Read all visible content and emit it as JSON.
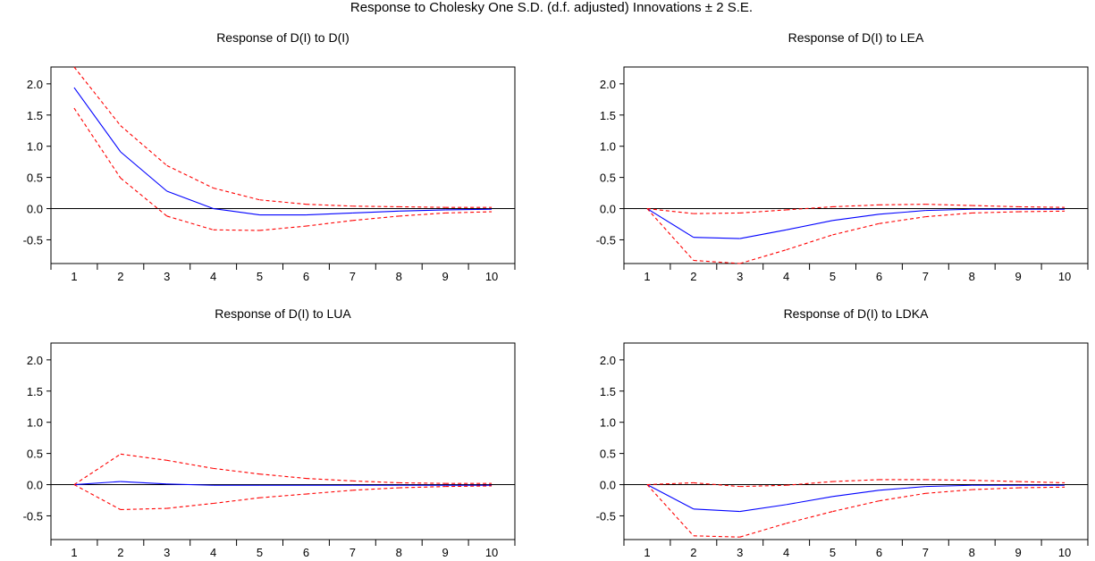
{
  "figure": {
    "title": "Response to Cholesky One S.D. (d.f. adjusted) Innovations ± 2 S.E."
  },
  "colors": {
    "response": "#0000ff",
    "band": "#ff0000",
    "axis": "#000000",
    "zero_line": "#000000",
    "background": "#ffffff"
  },
  "chart_data": [
    {
      "type": "line",
      "title": "Response of D(I) to D(I)",
      "xlabel": "",
      "ylabel": "",
      "x": [
        1,
        2,
        3,
        4,
        5,
        6,
        7,
        8,
        9,
        10
      ],
      "xticks": [
        "1",
        "2",
        "3",
        "4",
        "5",
        "6",
        "7",
        "8",
        "9",
        "10"
      ],
      "yticks": [
        "2.0",
        "1.5",
        "1.0",
        "0.5",
        "0.0",
        "-0.5"
      ],
      "ylim": [
        -0.88,
        2.27
      ],
      "grid": false,
      "series": [
        {
          "role": "response",
          "values": [
            1.94,
            0.91,
            0.28,
            0.0,
            -0.1,
            -0.1,
            -0.07,
            -0.04,
            -0.02,
            -0.01
          ]
        },
        {
          "role": "upper_band",
          "values": [
            2.27,
            1.33,
            0.69,
            0.33,
            0.14,
            0.07,
            0.04,
            0.03,
            0.02,
            0.02
          ]
        },
        {
          "role": "lower_band",
          "values": [
            1.61,
            0.49,
            -0.12,
            -0.34,
            -0.35,
            -0.28,
            -0.19,
            -0.12,
            -0.07,
            -0.05
          ]
        }
      ]
    },
    {
      "type": "line",
      "title": "Response of D(I) to LEA",
      "xlabel": "",
      "ylabel": "",
      "x": [
        1,
        2,
        3,
        4,
        5,
        6,
        7,
        8,
        9,
        10
      ],
      "xticks": [
        "1",
        "2",
        "3",
        "4",
        "5",
        "6",
        "7",
        "8",
        "9",
        "10"
      ],
      "yticks": [
        "2.0",
        "1.5",
        "1.0",
        "0.5",
        "0.0",
        "-0.5"
      ],
      "ylim": [
        -0.88,
        2.27
      ],
      "grid": false,
      "series": [
        {
          "role": "response",
          "values": [
            0.0,
            -0.46,
            -0.48,
            -0.34,
            -0.19,
            -0.09,
            -0.03,
            -0.01,
            -0.01,
            -0.01
          ]
        },
        {
          "role": "upper_band",
          "values": [
            0.0,
            -0.08,
            -0.07,
            -0.02,
            0.03,
            0.06,
            0.07,
            0.05,
            0.03,
            0.02
          ]
        },
        {
          "role": "lower_band",
          "values": [
            0.0,
            -0.83,
            -0.88,
            -0.66,
            -0.42,
            -0.24,
            -0.13,
            -0.07,
            -0.05,
            -0.04
          ]
        }
      ]
    },
    {
      "type": "line",
      "title": "Response of D(I) to LUA",
      "xlabel": "",
      "ylabel": "",
      "x": [
        1,
        2,
        3,
        4,
        5,
        6,
        7,
        8,
        9,
        10
      ],
      "xticks": [
        "1",
        "2",
        "3",
        "4",
        "5",
        "6",
        "7",
        "8",
        "9",
        "10"
      ],
      "yticks": [
        "2.0",
        "1.5",
        "1.0",
        "0.5",
        "0.0",
        "-0.5"
      ],
      "ylim": [
        -0.88,
        2.27
      ],
      "grid": false,
      "series": [
        {
          "role": "response",
          "values": [
            0.0,
            0.05,
            0.01,
            -0.01,
            -0.01,
            -0.01,
            -0.01,
            -0.01,
            -0.01,
            -0.01
          ]
        },
        {
          "role": "upper_band",
          "values": [
            0.0,
            0.49,
            0.39,
            0.26,
            0.17,
            0.1,
            0.06,
            0.03,
            0.02,
            0.02
          ]
        },
        {
          "role": "lower_band",
          "values": [
            0.0,
            -0.4,
            -0.38,
            -0.3,
            -0.21,
            -0.15,
            -0.09,
            -0.05,
            -0.03,
            -0.02
          ]
        }
      ]
    },
    {
      "type": "line",
      "title": "Response of D(I) to LDKA",
      "xlabel": "",
      "ylabel": "",
      "x": [
        1,
        2,
        3,
        4,
        5,
        6,
        7,
        8,
        9,
        10
      ],
      "xticks": [
        "1",
        "2",
        "3",
        "4",
        "5",
        "6",
        "7",
        "8",
        "9",
        "10"
      ],
      "yticks": [
        "2.0",
        "1.5",
        "1.0",
        "0.5",
        "0.0",
        "-0.5"
      ],
      "ylim": [
        -0.88,
        2.27
      ],
      "grid": false,
      "series": [
        {
          "role": "response",
          "values": [
            0.0,
            -0.39,
            -0.43,
            -0.32,
            -0.19,
            -0.09,
            -0.03,
            -0.01,
            -0.01,
            -0.01
          ]
        },
        {
          "role": "upper_band",
          "values": [
            0.0,
            0.03,
            -0.03,
            -0.01,
            0.05,
            0.08,
            0.08,
            0.07,
            0.05,
            0.03
          ]
        },
        {
          "role": "lower_band",
          "values": [
            0.0,
            -0.82,
            -0.84,
            -0.62,
            -0.43,
            -0.26,
            -0.14,
            -0.08,
            -0.05,
            -0.04
          ]
        }
      ]
    }
  ]
}
